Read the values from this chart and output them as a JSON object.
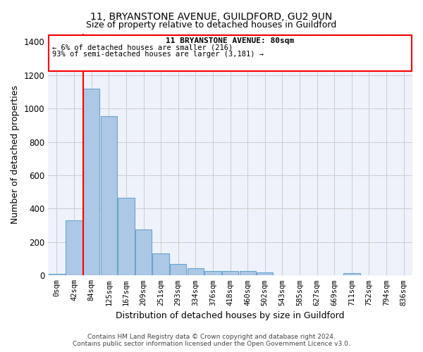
{
  "title": "11, BRYANSTONE AVENUE, GUILDFORD, GU2 9UN",
  "subtitle": "Size of property relative to detached houses in Guildford",
  "xlabel": "Distribution of detached houses by size in Guildford",
  "ylabel": "Number of detached properties",
  "bar_color": "#adc8e6",
  "bar_edge_color": "#6aa3cc",
  "background_color": "#eef2fa",
  "grid_color": "#cccccc",
  "categories": [
    "0sqm",
    "42sqm",
    "84sqm",
    "125sqm",
    "167sqm",
    "209sqm",
    "251sqm",
    "293sqm",
    "334sqm",
    "376sqm",
    "418sqm",
    "460sqm",
    "502sqm",
    "543sqm",
    "585sqm",
    "627sqm",
    "669sqm",
    "711sqm",
    "752sqm",
    "794sqm",
    "836sqm"
  ],
  "values": [
    10,
    330,
    1120,
    955,
    465,
    275,
    130,
    70,
    42,
    25,
    27,
    27,
    20,
    3,
    3,
    3,
    3,
    12,
    3,
    3,
    3
  ],
  "ylim": [
    0,
    1450
  ],
  "red_line_index": 2,
  "annotation_title": "11 BRYANSTONE AVENUE: 80sqm",
  "annotation_line1": "← 6% of detached houses are smaller (216)",
  "annotation_line2": "93% of semi-detached houses are larger (3,181) →",
  "footer_line1": "Contains HM Land Registry data © Crown copyright and database right 2024.",
  "footer_line2": "Contains public sector information licensed under the Open Government Licence v3.0.",
  "title_fontsize": 10,
  "subtitle_fontsize": 9
}
